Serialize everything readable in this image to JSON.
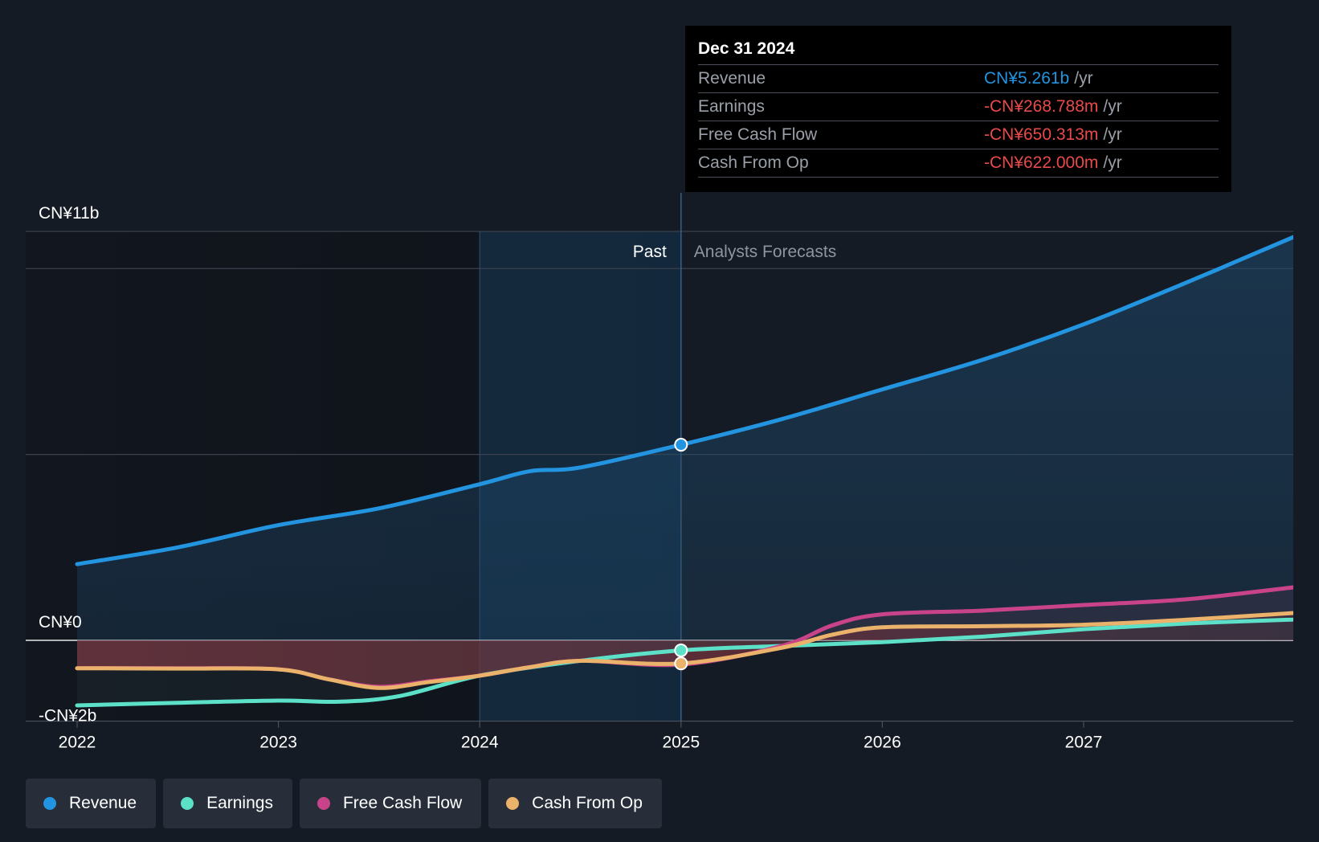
{
  "chart_data": {
    "type": "area",
    "title": "",
    "x_domain": [
      2022,
      2028
    ],
    "ylim": [
      -2,
      11
    ],
    "y_tick_labels": [
      {
        "value": 11,
        "label": "CN¥11b"
      },
      {
        "value": 0,
        "label": "CN¥0"
      },
      {
        "value": -2,
        "label": "-CN¥2b"
      }
    ],
    "x_tick_labels": [
      "2022",
      "2023",
      "2024",
      "2025",
      "2026",
      "2027"
    ],
    "past_label": "Past",
    "forecast_label": "Analysts Forecasts",
    "divider_x": 2025,
    "highlight_start_x": 2024,
    "series": [
      {
        "name": "Revenue",
        "color": "#2394df",
        "points": [
          [
            2022,
            2.05
          ],
          [
            2022.5,
            2.5
          ],
          [
            2023,
            3.1
          ],
          [
            2023.5,
            3.55
          ],
          [
            2024,
            4.2
          ],
          [
            2024.25,
            4.55
          ],
          [
            2024.5,
            4.65
          ],
          [
            2025,
            5.261
          ],
          [
            2025.5,
            5.95
          ],
          [
            2026,
            6.75
          ],
          [
            2026.5,
            7.55
          ],
          [
            2027,
            8.5
          ],
          [
            2027.5,
            9.6
          ],
          [
            2028,
            10.75
          ]
        ]
      },
      {
        "name": "Earnings",
        "color": "#5ce0c8",
        "points": [
          [
            2022,
            -1.75
          ],
          [
            2022.5,
            -1.68
          ],
          [
            2023,
            -1.62
          ],
          [
            2023.3,
            -1.65
          ],
          [
            2023.6,
            -1.5
          ],
          [
            2024,
            -0.95
          ],
          [
            2024.5,
            -0.55
          ],
          [
            2025,
            -0.269
          ],
          [
            2025.5,
            -0.15
          ],
          [
            2026,
            -0.05
          ],
          [
            2026.5,
            0.1
          ],
          [
            2027,
            0.3
          ],
          [
            2027.5,
            0.45
          ],
          [
            2028,
            0.55
          ]
        ]
      },
      {
        "name": "Free Cash Flow",
        "color": "#c8438a",
        "points": [
          [
            2022,
            -0.75
          ],
          [
            2022.5,
            -0.75
          ],
          [
            2023,
            -0.78
          ],
          [
            2023.25,
            -1.05
          ],
          [
            2023.5,
            -1.25
          ],
          [
            2023.75,
            -1.1
          ],
          [
            2024,
            -0.95
          ],
          [
            2024.25,
            -0.72
          ],
          [
            2024.5,
            -0.55
          ],
          [
            2025,
            -0.65
          ],
          [
            2025.5,
            -0.15
          ],
          [
            2025.75,
            0.4
          ],
          [
            2026,
            0.7
          ],
          [
            2026.5,
            0.8
          ],
          [
            2027,
            0.95
          ],
          [
            2027.5,
            1.1
          ],
          [
            2028,
            1.4
          ]
        ]
      },
      {
        "name": "Cash From Op",
        "color": "#eab26a",
        "points": [
          [
            2022,
            -0.75
          ],
          [
            2022.5,
            -0.76
          ],
          [
            2023,
            -0.78
          ],
          [
            2023.25,
            -1.05
          ],
          [
            2023.5,
            -1.28
          ],
          [
            2023.75,
            -1.12
          ],
          [
            2024,
            -0.95
          ],
          [
            2024.25,
            -0.72
          ],
          [
            2024.5,
            -0.55
          ],
          [
            2025,
            -0.622
          ],
          [
            2025.5,
            -0.2
          ],
          [
            2025.75,
            0.15
          ],
          [
            2026,
            0.35
          ],
          [
            2026.5,
            0.38
          ],
          [
            2027,
            0.42
          ],
          [
            2027.5,
            0.55
          ],
          [
            2028,
            0.72
          ]
        ]
      }
    ],
    "highlight_date": "Dec 31 2024",
    "highlight_points": [
      {
        "series": "Revenue",
        "x": 2025,
        "y": 5.261
      },
      {
        "series": "Earnings",
        "x": 2025,
        "y": -0.269
      },
      {
        "series": "Cash From Op",
        "x": 2025,
        "y": -0.622
      }
    ]
  },
  "tooltip": {
    "date": "Dec 31 2024",
    "rows": [
      {
        "label": "Revenue",
        "value": "CN¥5.261b",
        "unit": "/yr",
        "color": "#2394df"
      },
      {
        "label": "Earnings",
        "value": "-CN¥268.788m",
        "unit": "/yr",
        "color": "#e84a4a"
      },
      {
        "label": "Free Cash Flow",
        "value": "-CN¥650.313m",
        "unit": "/yr",
        "color": "#e84a4a"
      },
      {
        "label": "Cash From Op",
        "value": "-CN¥622.000m",
        "unit": "/yr",
        "color": "#e84a4a"
      }
    ]
  },
  "legend": [
    {
      "label": "Revenue",
      "color": "#2394df"
    },
    {
      "label": "Earnings",
      "color": "#5ce0c8"
    },
    {
      "label": "Free Cash Flow",
      "color": "#c8438a"
    },
    {
      "label": "Cash From Op",
      "color": "#eab26a"
    }
  ]
}
